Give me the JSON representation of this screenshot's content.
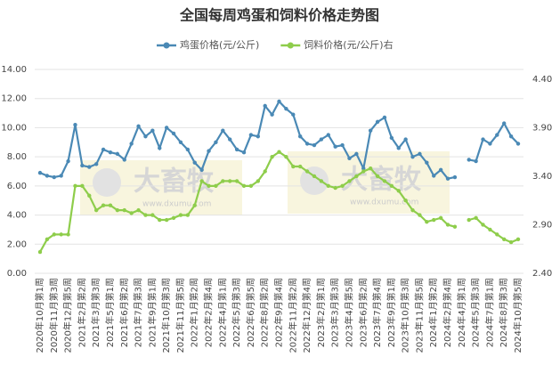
{
  "chart_data": {
    "type": "line",
    "title": "全国每周鸡蛋和饲料价格走势图",
    "watermark": "大畜牧",
    "watermark_url": "www.dxumu.com",
    "categories": [
      "2020年10月第1周",
      null,
      "2020年11月第3周",
      null,
      "2020年12月第5周",
      null,
      "2021年2月第2周",
      null,
      "2021年3月第3周",
      null,
      "2021年5月第1周",
      null,
      "2021年6月第2周",
      null,
      "2021年7月第3周",
      null,
      "2021年9月第1周",
      null,
      "2021年10月第3周",
      null,
      "2021年11月第5周",
      null,
      "2022年1月第2周",
      null,
      "2022年2月第4周",
      null,
      "2022年4月第1周",
      null,
      "2022年5月第3周",
      null,
      "2022年6月第5周",
      null,
      "2022年8月第2周",
      null,
      "2022年9月第4周",
      null,
      "2022年11月第2周",
      null,
      "2022年12月第4周",
      null,
      "2023年2月第1周",
      null,
      "2023年3月第3周",
      null,
      "2023年4月第5周",
      null,
      "2023年6月第2周",
      null,
      "2023年7月第4周",
      null,
      "2023年9月第1周",
      null,
      "2023年10月第3周",
      null,
      "2023年11月第5周",
      null,
      "2024年1月第2周",
      null,
      "2024年2月第4周",
      null,
      "2024年4月第1周",
      null,
      "2024年5月第3周",
      null,
      "2024年7月第1周",
      null,
      "2024年8月第3周",
      null,
      "2024年10月第5周"
    ],
    "series": [
      {
        "name": "鸡蛋价格(元/公斤)",
        "color": "#4a89b5",
        "values": [
          6.9,
          6.7,
          6.6,
          6.7,
          7.7,
          10.2,
          7.4,
          7.3,
          7.5,
          8.5,
          8.3,
          8.2,
          7.8,
          8.9,
          10.1,
          9.4,
          9.8,
          8.6,
          10.0,
          9.6,
          9.0,
          8.5,
          7.6,
          7.1,
          8.4,
          9.0,
          9.8,
          9.2,
          8.5,
          8.3,
          9.5,
          9.4,
          11.5,
          10.9,
          11.8,
          11.3,
          10.9,
          9.4,
          8.9,
          8.8,
          9.2,
          9.5,
          8.7,
          8.8,
          7.9,
          8.2,
          7.2,
          9.8,
          10.4,
          10.7,
          9.3,
          8.6,
          9.2,
          8.0,
          8.2,
          7.6,
          6.7,
          7.1,
          6.5,
          6.6,
          null,
          7.8,
          7.7,
          9.2,
          8.9,
          9.5,
          10.3,
          9.4,
          8.9
        ]
      },
      {
        "name": "饲料价格(元/公斤)右",
        "color": "#8ecd4b",
        "axis": "y2",
        "values": [
          2.62,
          2.75,
          2.8,
          2.8,
          2.8,
          3.3,
          3.3,
          3.2,
          3.05,
          3.1,
          3.1,
          3.05,
          3.05,
          3.02,
          3.05,
          3.0,
          3.0,
          2.95,
          2.95,
          2.97,
          3.0,
          3.0,
          3.1,
          3.35,
          3.3,
          3.3,
          3.35,
          3.35,
          3.35,
          3.3,
          3.3,
          3.35,
          3.45,
          3.6,
          3.65,
          3.6,
          3.5,
          3.5,
          3.45,
          3.4,
          3.35,
          3.3,
          3.28,
          3.3,
          3.35,
          3.4,
          3.45,
          3.48,
          3.4,
          3.35,
          3.3,
          3.25,
          3.15,
          3.05,
          3.0,
          2.93,
          2.95,
          2.97,
          2.9,
          2.88,
          null,
          2.95,
          2.97,
          2.9,
          2.85,
          2.8,
          2.75,
          2.72,
          2.75
        ]
      }
    ],
    "ylim": [
      0,
      14
    ],
    "yticks": [
      {
        "value": 0,
        "label": "0.00"
      },
      {
        "value": 2,
        "label": "2.00"
      },
      {
        "value": 4,
        "label": "4.00"
      },
      {
        "value": 6,
        "label": "6.00"
      },
      {
        "value": 8,
        "label": "8.00"
      },
      {
        "value": 10,
        "label": "10.00"
      },
      {
        "value": 12,
        "label": "12.00"
      },
      {
        "value": 14,
        "label": "14.00"
      }
    ],
    "y2lim": [
      2.4,
      4.5
    ],
    "y2ticks": [
      {
        "value": 2.4,
        "label": "2.40"
      },
      {
        "value": 2.9,
        "label": "2.90"
      },
      {
        "value": 3.4,
        "label": "3.40"
      },
      {
        "value": 3.9,
        "label": "3.90"
      },
      {
        "value": 4.4,
        "label": "4.40"
      }
    ],
    "grid": true,
    "legend": "top"
  }
}
